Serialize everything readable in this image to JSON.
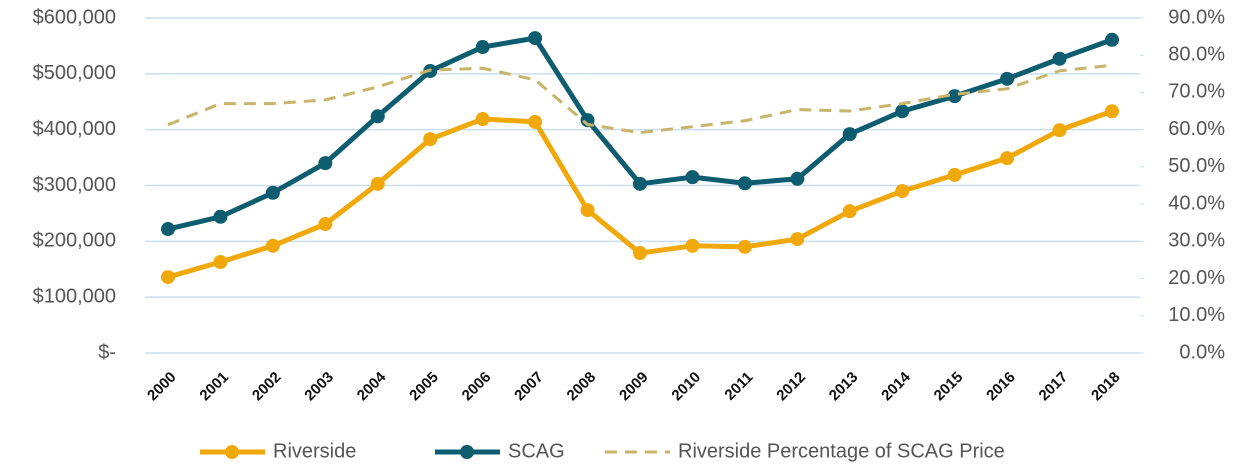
{
  "chart_data": {
    "type": "line",
    "categories": [
      "2000",
      "2001",
      "2002",
      "2003",
      "2004",
      "2005",
      "2006",
      "2007",
      "2008",
      "2009",
      "2010",
      "2011",
      "2012",
      "2013",
      "2014",
      "2015",
      "2016",
      "2017",
      "2018"
    ],
    "series": [
      {
        "name": "Riverside",
        "color": "#f0a80a",
        "marker": true,
        "dashed": false,
        "values": [
          136000,
          163000,
          192000,
          231000,
          303000,
          383000,
          419000,
          414000,
          256000,
          179000,
          192000,
          190000,
          204000,
          254000,
          290000,
          319000,
          349000,
          399000,
          433000
        ]
      },
      {
        "name": "SCAG",
        "color": "#0d5c70",
        "marker": true,
        "dashed": false,
        "values": [
          222000,
          244000,
          287000,
          340000,
          424000,
          505000,
          548000,
          564000,
          417000,
          303000,
          315000,
          304000,
          312000,
          392000,
          433000,
          460000,
          491000,
          527000,
          561000
        ]
      },
      {
        "name": "Riverside Percentage of SCAG Price",
        "color": "#c8b46a",
        "marker": false,
        "dashed": true,
        "axis": "y2",
        "values": [
          61.3,
          67,
          67,
          68,
          71.5,
          76,
          76.5,
          73.4,
          61.4,
          59.2,
          60.8,
          62.4,
          65.4,
          65,
          67,
          69.5,
          71,
          75.8,
          77.3
        ]
      }
    ],
    "ylim": [
      0,
      600000
    ],
    "yticks": [
      {
        "value": 0,
        "label": "$-"
      },
      {
        "value": 100000,
        "label": "$100,000"
      },
      {
        "value": 200000,
        "label": "$200,000"
      },
      {
        "value": 300000,
        "label": "$300,000"
      },
      {
        "value": 400000,
        "label": "$400,000"
      },
      {
        "value": 500000,
        "label": "$500,000"
      },
      {
        "value": 600000,
        "label": "$600,000"
      }
    ],
    "y2lim": [
      0,
      90
    ],
    "y2ticks": [
      {
        "value": 0,
        "label": "0.0%"
      },
      {
        "value": 10,
        "label": "10.0%"
      },
      {
        "value": 20,
        "label": "20.0%"
      },
      {
        "value": 30,
        "label": "30.0%"
      },
      {
        "value": 40,
        "label": "40.0%"
      },
      {
        "value": 50,
        "label": "50.0%"
      },
      {
        "value": 60,
        "label": "60.0%"
      },
      {
        "value": 70,
        "label": "70.0%"
      },
      {
        "value": 80,
        "label": "80.0%"
      },
      {
        "value": 90,
        "label": "90.0%"
      }
    ],
    "grid": true,
    "legend": "bottom"
  }
}
